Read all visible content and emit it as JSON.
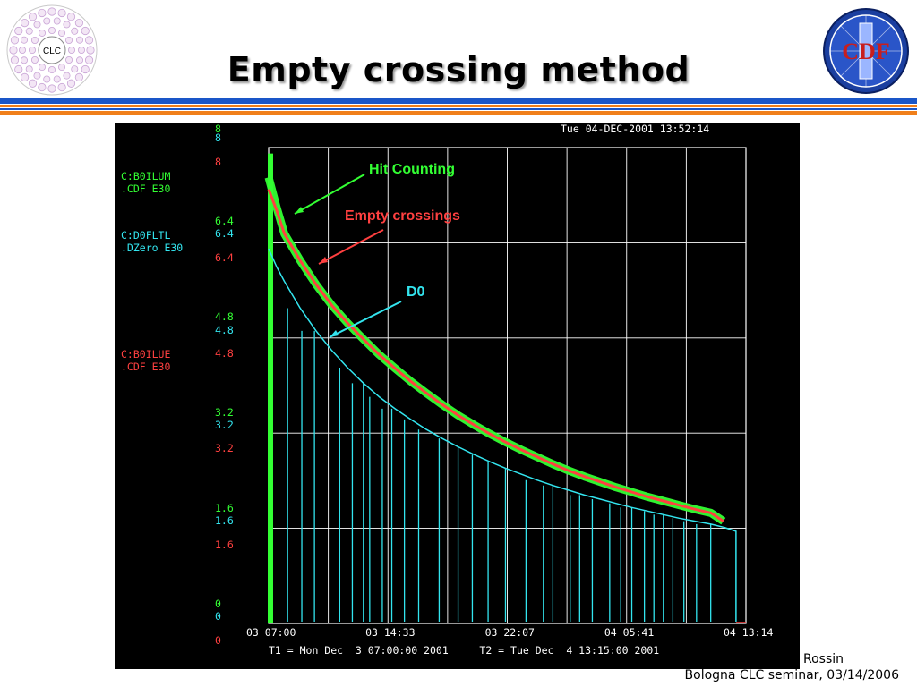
{
  "slide": {
    "title": "Empty crossing method",
    "footer_author": "o Rossin",
    "footer_event": "Bologna CLC seminar, 03/14/2006",
    "logo_left_text": "CLC",
    "logo_right_text": "CDF"
  },
  "colors": {
    "rule_blue": "#1a56c8",
    "rule_orange": "#f07f1a",
    "green": "#33ff33",
    "cyan": "#33e5ef",
    "red": "#ff4040",
    "grid": "#ffffff"
  },
  "chart_data": {
    "type": "line",
    "timestamp": "Tue 04-DEC-2001 13:52:14",
    "time_range_label": "T1 = Mon Dec  3 07:00:00 2001     T2 = Tue Dec  4 13:15:00 2001",
    "x_ticks": [
      "03 07:00",
      "03 14:33",
      "03 22:07",
      "04 05:41",
      "04 13:14"
    ],
    "grid": true,
    "ylim": [
      0,
      8
    ],
    "channels": [
      {
        "name": "C:B0ILUM",
        "unit": ".CDF    E30",
        "color": "green",
        "y_ticks": [
          "8",
          "6.4",
          "4.8",
          "3.2",
          "1.6",
          "0"
        ]
      },
      {
        "name": "C:D0FLTL",
        "unit": ".DZero  E30",
        "color": "cyan",
        "y_ticks": [
          "8",
          "6.4",
          "4.8",
          "3.2",
          "1.6",
          "0"
        ]
      },
      {
        "name": "C:B0ILUE",
        "unit": ".CDF    E30",
        "color": "red",
        "y_ticks": [
          "8",
          "6.4",
          "4.8",
          "3.2",
          "1.6",
          "0"
        ]
      }
    ],
    "annotations": [
      {
        "text": "Hit Counting",
        "color": "green"
      },
      {
        "text": "Empty crossings",
        "color": "red"
      },
      {
        "text": "D0",
        "color": "cyan"
      }
    ],
    "x_hours": [
      0,
      0.5,
      1,
      2,
      3,
      4,
      5,
      6,
      7,
      8,
      9,
      10,
      11,
      12,
      13,
      14,
      15,
      16,
      17,
      18,
      19,
      20,
      21,
      22,
      23,
      24,
      25,
      26,
      27,
      28,
      28.8
    ],
    "series": [
      {
        "name": "C:B0ILUM",
        "color": "green",
        "values": [
          7.5,
          7.0,
          6.55,
          6.1,
          5.7,
          5.35,
          5.05,
          4.78,
          4.52,
          4.29,
          4.07,
          3.87,
          3.68,
          3.5,
          3.34,
          3.19,
          3.05,
          2.92,
          2.8,
          2.68,
          2.57,
          2.47,
          2.38,
          2.29,
          2.21,
          2.13,
          2.06,
          1.99,
          1.92,
          1.86,
          1.72
        ]
      },
      {
        "name": "C:B0ILUE",
        "color": "red",
        "values": [
          7.3,
          6.95,
          6.55,
          6.1,
          5.7,
          5.35,
          5.05,
          4.78,
          4.52,
          4.29,
          4.07,
          3.87,
          3.68,
          3.5,
          3.34,
          3.19,
          3.05,
          2.92,
          2.8,
          2.68,
          2.57,
          2.47,
          2.38,
          2.29,
          2.21,
          2.13,
          2.06,
          1.99,
          1.92,
          1.86,
          1.72
        ]
      },
      {
        "name": "C:D0FLTL",
        "color": "cyan",
        "values": [
          6.3,
          6.0,
          5.75,
          5.3,
          4.92,
          4.59,
          4.3,
          4.04,
          3.81,
          3.61,
          3.43,
          3.26,
          3.11,
          2.97,
          2.84,
          2.72,
          2.61,
          2.51,
          2.41,
          2.32,
          2.24,
          2.16,
          2.09,
          2.02,
          1.95,
          1.89,
          1.83,
          1.77,
          1.72,
          1.67,
          1.62
        ]
      }
    ],
    "dropouts_cyan_hours": [
      1.2,
      2.1,
      2.9,
      4.5,
      5.3,
      6.0,
      6.4,
      7.2,
      7.8,
      8.6,
      9.5,
      10.8,
      12.0,
      12.9,
      13.9,
      15.0,
      16.3,
      17.4,
      18.0,
      19.1,
      19.7,
      20.5,
      21.6,
      22.3,
      23.0,
      23.8,
      24.4,
      25.0,
      25.6,
      26.3,
      27.1,
      28.0
    ]
  }
}
